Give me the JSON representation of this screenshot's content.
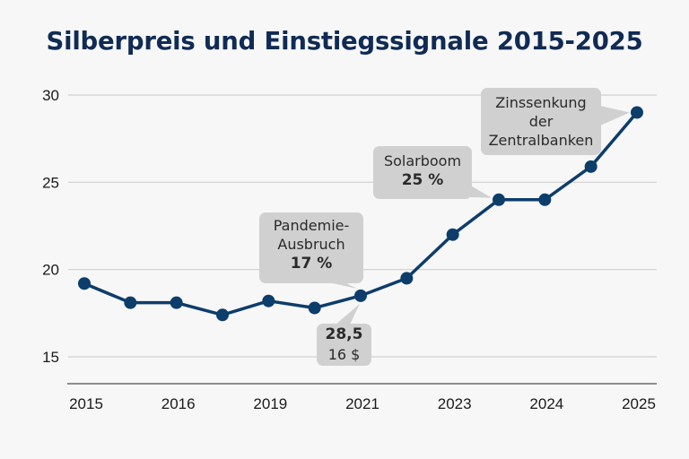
{
  "chart_data": {
    "type": "line",
    "title": "Silberpreis und Einstiegssignale 2015-2025",
    "xlabel": "",
    "ylabel": "",
    "x_tick_labels": [
      "2015",
      "2016",
      "2019",
      "2021",
      "2023",
      "2024",
      "2025"
    ],
    "y_ticks": [
      15,
      20,
      25,
      30
    ],
    "ylim": [
      15,
      30
    ],
    "grid": "horizontal",
    "legend": "none",
    "series": [
      {
        "name": "Silberpreis",
        "color": "#0d3d6b",
        "values": [
          19.2,
          18.1,
          18.1,
          17.4,
          18.2,
          17.8,
          18.5,
          19.5,
          22.0,
          24.0,
          24.0,
          25.9,
          29.0
        ]
      }
    ],
    "annotations": [
      {
        "id": "pandemie",
        "lines": [
          "Pandemie-",
          "Ausbruch"
        ],
        "value": "17 %",
        "point_index": 6
      },
      {
        "id": "preis",
        "lines": [
          "16 $"
        ],
        "value": "28,5",
        "point_index": 6
      },
      {
        "id": "solarboom",
        "lines": [
          "Solarboom"
        ],
        "value": "25 %",
        "point_index": 9
      },
      {
        "id": "zinssenkung",
        "lines": [
          "Zinssenkung",
          "der",
          "Zentralbanken"
        ],
        "value": "",
        "point_index": 12
      }
    ]
  }
}
